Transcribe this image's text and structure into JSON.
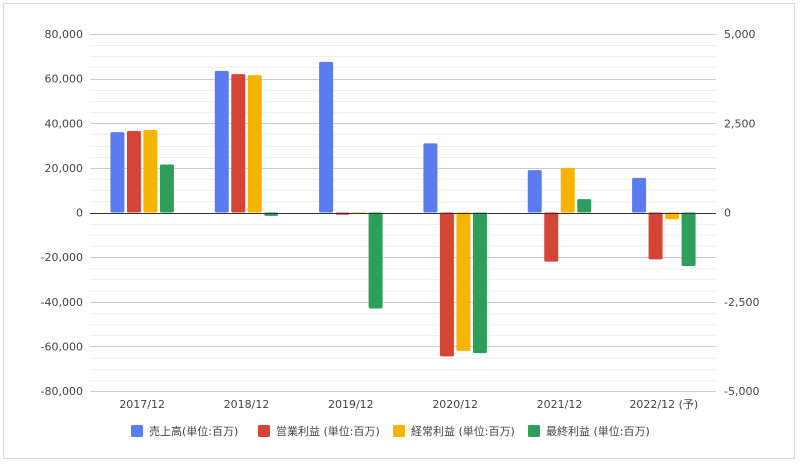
{
  "chart_data": {
    "type": "bar",
    "categories": [
      "2017/12",
      "2018/12",
      "2019/12",
      "2020/12",
      "2021/12",
      "2022/12 (予)"
    ],
    "series": [
      {
        "name": "売上高(単位:百万)",
        "color": "#5b7bf0",
        "values": [
          36000,
          63500,
          67500,
          31000,
          19000,
          15500
        ]
      },
      {
        "name": "営業利益 (単位:百万)",
        "color": "#d44538",
        "values": [
          36500,
          62000,
          -1000,
          -64500,
          -22000,
          -21000
        ]
      },
      {
        "name": "経常利益 (単位:百万)",
        "color": "#f4b400",
        "values": [
          37000,
          61500,
          -500,
          -62000,
          20000,
          -3000
        ]
      },
      {
        "name": "最終利益 (単位:百万)",
        "color": "#2e9e5b",
        "values": [
          21500,
          -1500,
          -43000,
          -63000,
          6000,
          -24000
        ]
      }
    ],
    "ylim": [
      -80000,
      80000
    ],
    "y_ticks": [
      "80,000",
      "60,000",
      "40,000",
      "20,000",
      "0",
      "-20,000",
      "-40,000",
      "-60,000",
      "-80,000"
    ],
    "y2lim": [
      -5000,
      5000
    ],
    "y2_ticks": [
      "5,000",
      "2,500",
      "0",
      "-2,500",
      "-5,000"
    ],
    "legend_position": "bottom",
    "grid": true
  }
}
